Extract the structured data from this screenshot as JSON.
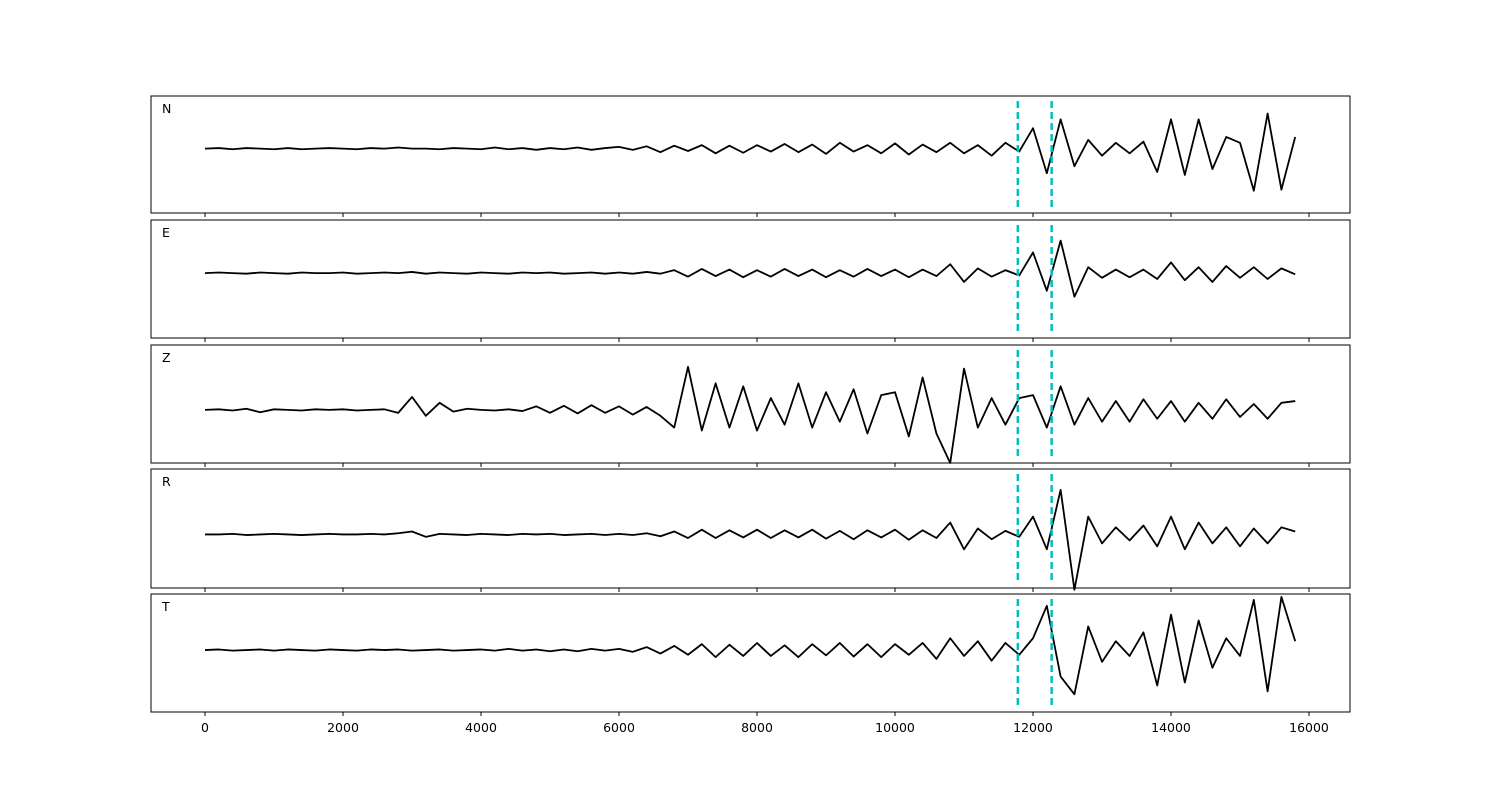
{
  "chart_data": [
    {
      "type": "line",
      "label": "N",
      "color": "#000000",
      "vlines": [
        11780,
        12270
      ],
      "vline_color": "#00bfbf",
      "xlim": [
        -783,
        16594
      ],
      "xticks": [
        0,
        2000,
        4000,
        6000,
        8000,
        10000,
        12000,
        14000,
        16000
      ],
      "ylim": [
        -1.1,
        0.9
      ],
      "x": [
        0,
        200,
        400,
        600,
        800,
        1000,
        1200,
        1400,
        1600,
        1800,
        2000,
        2200,
        2400,
        2600,
        2800,
        3000,
        3200,
        3400,
        3600,
        3800,
        4000,
        4200,
        4400,
        4600,
        4800,
        5000,
        5200,
        5400,
        5600,
        5800,
        6000,
        6200,
        6400,
        6600,
        6800,
        7000,
        7200,
        7400,
        7600,
        7800,
        8000,
        8200,
        8400,
        8600,
        8800,
        9000,
        9200,
        9400,
        9600,
        9800,
        10000,
        10200,
        10400,
        10600,
        10800,
        11000,
        11200,
        11400,
        11600,
        11800,
        12000,
        12200,
        12400,
        12600,
        12800,
        13000,
        13200,
        13400,
        13600,
        13800,
        14000,
        14200,
        14400,
        14600,
        14800,
        15000,
        15200,
        15400,
        15600,
        15800
      ],
      "values": [
        0,
        0.01,
        -0.01,
        0.01,
        0,
        -0.01,
        0.01,
        -0.01,
        0,
        0.01,
        0,
        -0.01,
        0.01,
        0,
        0.02,
        0,
        0,
        -0.01,
        0.01,
        0,
        -0.01,
        0.02,
        -0.01,
        0.01,
        -0.02,
        0.01,
        -0.01,
        0.02,
        -0.02,
        0.01,
        0.03,
        -0.02,
        0.04,
        -0.06,
        0.05,
        -0.04,
        0.06,
        -0.08,
        0.05,
        -0.07,
        0.06,
        -0.05,
        0.08,
        -0.06,
        0.07,
        -0.09,
        0.1,
        -0.05,
        0.06,
        -0.08,
        0.09,
        -0.1,
        0.07,
        -0.06,
        0.1,
        -0.08,
        0.06,
        -0.12,
        0.1,
        -0.05,
        0.35,
        -0.42,
        0.5,
        -0.3,
        0.15,
        -0.12,
        0.1,
        -0.08,
        0.12,
        -0.4,
        0.5,
        -0.45,
        0.5,
        -0.35,
        0.2,
        0.1,
        -0.72,
        0.6,
        -0.7,
        0.2
      ]
    },
    {
      "type": "line",
      "label": "E",
      "color": "#000000",
      "vlines": [
        11780,
        12270
      ],
      "vline_color": "#00bfbf",
      "xlim": [
        -783,
        16594
      ],
      "xticks": [
        0,
        2000,
        4000,
        6000,
        8000,
        10000,
        12000,
        14000,
        16000
      ],
      "ylim": [
        -1.1,
        0.9
      ],
      "x": [
        0,
        200,
        400,
        600,
        800,
        1000,
        1200,
        1400,
        1600,
        1800,
        2000,
        2200,
        2400,
        2600,
        2800,
        3000,
        3200,
        3400,
        3600,
        3800,
        4000,
        4200,
        4400,
        4600,
        4800,
        5000,
        5200,
        5400,
        5600,
        5800,
        6000,
        6200,
        6400,
        6600,
        6800,
        7000,
        7200,
        7400,
        7600,
        7800,
        8000,
        8200,
        8400,
        8600,
        8800,
        9000,
        9200,
        9400,
        9600,
        9800,
        10000,
        10200,
        10400,
        10600,
        10800,
        11000,
        11200,
        11400,
        11600,
        11800,
        12000,
        12200,
        12400,
        12600,
        12800,
        13000,
        13200,
        13400,
        13600,
        13800,
        14000,
        14200,
        14400,
        14600,
        14800,
        15000,
        15200,
        15400,
        15600,
        15800
      ],
      "values": [
        0,
        0.01,
        0,
        -0.01,
        0.01,
        0,
        -0.01,
        0.01,
        0,
        0,
        0.01,
        -0.01,
        0,
        0.01,
        0,
        0.02,
        -0.01,
        0.01,
        0,
        -0.01,
        0.01,
        0,
        -0.01,
        0.01,
        0,
        0.01,
        -0.01,
        0,
        0.01,
        -0.01,
        0.01,
        -0.01,
        0.02,
        -0.01,
        0.05,
        -0.06,
        0.07,
        -0.05,
        0.06,
        -0.07,
        0.05,
        -0.06,
        0.07,
        -0.05,
        0.06,
        -0.07,
        0.05,
        -0.06,
        0.07,
        -0.05,
        0.06,
        -0.07,
        0.06,
        -0.05,
        0.15,
        -0.15,
        0.08,
        -0.06,
        0.05,
        -0.04,
        0.35,
        -0.3,
        0.55,
        -0.4,
        0.1,
        -0.08,
        0.06,
        -0.07,
        0.06,
        -0.1,
        0.18,
        -0.12,
        0.1,
        -0.15,
        0.12,
        -0.08,
        0.1,
        -0.1,
        0.08,
        -0.02
      ]
    },
    {
      "type": "line",
      "label": "Z",
      "color": "#000000",
      "vlines": [
        11780,
        12270
      ],
      "vline_color": "#00bfbf",
      "xlim": [
        -783,
        16594
      ],
      "xticks": [
        0,
        2000,
        4000,
        6000,
        8000,
        10000,
        12000,
        14000,
        16000
      ],
      "ylim": [
        -0.9,
        1.1
      ],
      "x": [
        0,
        200,
        400,
        600,
        800,
        1000,
        1200,
        1400,
        1600,
        1800,
        2000,
        2200,
        2400,
        2600,
        2800,
        3000,
        3200,
        3400,
        3600,
        3800,
        4000,
        4200,
        4400,
        4600,
        4800,
        5000,
        5200,
        5400,
        5600,
        5800,
        6000,
        6200,
        6400,
        6600,
        6800,
        7000,
        7200,
        7400,
        7600,
        7800,
        8000,
        8200,
        8400,
        8600,
        8800,
        9000,
        9200,
        9400,
        9600,
        9800,
        10000,
        10200,
        10400,
        10600,
        10800,
        11000,
        11200,
        11400,
        11600,
        11800,
        12000,
        12200,
        12400,
        12600,
        12800,
        13000,
        13200,
        13400,
        13600,
        13800,
        14000,
        14200,
        14400,
        14600,
        14800,
        15000,
        15200,
        15400,
        15600,
        15800
      ],
      "values": [
        0,
        0.01,
        -0.01,
        0.02,
        -0.04,
        0.01,
        0,
        -0.01,
        0.01,
        0,
        0.01,
        -0.01,
        0,
        0.01,
        -0.05,
        0.22,
        -0.1,
        0.12,
        -0.03,
        0.02,
        0,
        -0.01,
        0.01,
        -0.02,
        0.06,
        -0.05,
        0.07,
        -0.06,
        0.08,
        -0.05,
        0.06,
        -0.08,
        0.05,
        -0.1,
        -0.3,
        0.73,
        -0.35,
        0.45,
        -0.3,
        0.4,
        -0.35,
        0.2,
        -0.25,
        0.45,
        -0.3,
        0.3,
        -0.2,
        0.35,
        -0.4,
        0.25,
        0.3,
        -0.45,
        0.55,
        -0.4,
        -0.9,
        0.7,
        -0.3,
        0.2,
        -0.25,
        0.2,
        0.25,
        -0.3,
        0.4,
        -0.25,
        0.2,
        -0.2,
        0.15,
        -0.2,
        0.18,
        -0.15,
        0.15,
        -0.2,
        0.12,
        -0.15,
        0.18,
        -0.12,
        0.1,
        -0.15,
        0.12,
        0.15
      ]
    },
    {
      "type": "line",
      "label": "R",
      "color": "#000000",
      "vlines": [
        11780,
        12270
      ],
      "vline_color": "#00bfbf",
      "xlim": [
        -783,
        16594
      ],
      "xticks": [
        0,
        2000,
        4000,
        6000,
        8000,
        10000,
        12000,
        14000,
        16000
      ],
      "ylim": [
        -0.9,
        1.1
      ],
      "x": [
        0,
        200,
        400,
        600,
        800,
        1000,
        1200,
        1400,
        1600,
        1800,
        2000,
        2200,
        2400,
        2600,
        2800,
        3000,
        3200,
        3400,
        3600,
        3800,
        4000,
        4200,
        4400,
        4600,
        4800,
        5000,
        5200,
        5400,
        5600,
        5800,
        6000,
        6200,
        6400,
        6600,
        6800,
        7000,
        7200,
        7400,
        7600,
        7800,
        8000,
        8200,
        8400,
        8600,
        8800,
        9000,
        9200,
        9400,
        9600,
        9800,
        10000,
        10200,
        10400,
        10600,
        10800,
        11000,
        11200,
        11400,
        11600,
        11800,
        12000,
        12200,
        12400,
        12600,
        12800,
        13000,
        13200,
        13400,
        13600,
        13800,
        14000,
        14200,
        14400,
        14600,
        14800,
        15000,
        15200,
        15400,
        15600,
        15800
      ],
      "values": [
        0,
        0,
        0.01,
        -0.01,
        0,
        0.01,
        0,
        -0.01,
        0,
        0.01,
        0,
        0,
        0.01,
        0,
        0.02,
        0.05,
        -0.04,
        0.01,
        0,
        -0.01,
        0.01,
        0,
        -0.01,
        0.01,
        0,
        0.01,
        -0.01,
        0,
        0.01,
        -0.01,
        0.01,
        -0.01,
        0.02,
        -0.03,
        0.05,
        -0.06,
        0.08,
        -0.06,
        0.07,
        -0.05,
        0.08,
        -0.06,
        0.07,
        -0.05,
        0.08,
        -0.07,
        0.06,
        -0.08,
        0.07,
        -0.05,
        0.08,
        -0.09,
        0.07,
        -0.06,
        0.2,
        -0.25,
        0.1,
        -0.08,
        0.06,
        -0.04,
        0.3,
        -0.25,
        0.75,
        -0.93,
        0.3,
        -0.15,
        0.12,
        -0.1,
        0.15,
        -0.2,
        0.3,
        -0.25,
        0.2,
        -0.15,
        0.12,
        -0.2,
        0.1,
        -0.15,
        0.12,
        0.05
      ]
    },
    {
      "type": "line",
      "label": "T",
      "color": "#000000",
      "vlines": [
        11780,
        12270
      ],
      "vline_color": "#00bfbf",
      "xlim": [
        -783,
        16594
      ],
      "xticks": [
        0,
        2000,
        4000,
        6000,
        8000,
        10000,
        12000,
        14000,
        16000
      ],
      "ylim": [
        -1.05,
        0.95
      ],
      "x": [
        0,
        200,
        400,
        600,
        800,
        1000,
        1200,
        1400,
        1600,
        1800,
        2000,
        2200,
        2400,
        2600,
        2800,
        3000,
        3200,
        3400,
        3600,
        3800,
        4000,
        4200,
        4400,
        4600,
        4800,
        5000,
        5200,
        5400,
        5600,
        5800,
        6000,
        6200,
        6400,
        6600,
        6800,
        7000,
        7200,
        7400,
        7600,
        7800,
        8000,
        8200,
        8400,
        8600,
        8800,
        9000,
        9200,
        9400,
        9600,
        9800,
        10000,
        10200,
        10400,
        10600,
        10800,
        11000,
        11200,
        11400,
        11600,
        11800,
        12000,
        12200,
        12400,
        12600,
        12800,
        13000,
        13200,
        13400,
        13600,
        13800,
        14000,
        14200,
        14400,
        14600,
        14800,
        15000,
        15200,
        15400,
        15600,
        15800
      ],
      "values": [
        0,
        0.01,
        -0.01,
        0,
        0.01,
        -0.01,
        0.01,
        0,
        -0.01,
        0.01,
        0,
        -0.01,
        0.01,
        0,
        0.01,
        -0.01,
        0,
        0.01,
        -0.01,
        0,
        0.01,
        -0.01,
        0.02,
        -0.01,
        0.01,
        -0.02,
        0.01,
        -0.02,
        0.02,
        -0.01,
        0.02,
        -0.03,
        0.05,
        -0.06,
        0.07,
        -0.08,
        0.1,
        -0.12,
        0.09,
        -0.1,
        0.12,
        -0.1,
        0.08,
        -0.12,
        0.1,
        -0.09,
        0.12,
        -0.11,
        0.1,
        -0.12,
        0.1,
        -0.08,
        0.12,
        -0.15,
        0.2,
        -0.1,
        0.15,
        -0.18,
        0.12,
        -0.08,
        0.2,
        0.75,
        -0.45,
        -0.75,
        0.4,
        -0.2,
        0.15,
        -0.1,
        0.3,
        -0.6,
        0.6,
        -0.55,
        0.5,
        -0.3,
        0.2,
        -0.1,
        0.85,
        -0.7,
        0.9,
        0.15
      ]
    }
  ]
}
